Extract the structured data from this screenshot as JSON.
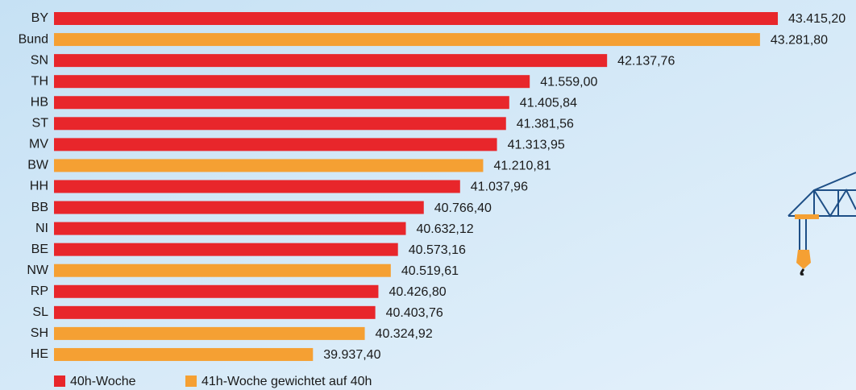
{
  "chart_data": {
    "type": "bar",
    "orientation": "horizontal",
    "categories": [
      "BY",
      "Bund",
      "SN",
      "TH",
      "HB",
      "ST",
      "MV",
      "BW",
      "HH",
      "BB",
      "NI",
      "BE",
      "NW",
      "RP",
      "SL",
      "SH",
      "HE"
    ],
    "series": [
      {
        "name": "40h-Woche",
        "color": "#e8262b",
        "values": [
          43415.2,
          null,
          42137.76,
          41559.0,
          41405.84,
          41381.56,
          41313.95,
          null,
          41037.96,
          40766.4,
          40632.12,
          40573.16,
          null,
          40426.8,
          40403.76,
          null,
          null
        ],
        "value_labels": [
          "43.415,20",
          null,
          "42.137,76",
          "41.559,00",
          "41.405,84",
          "41.381,56",
          "41.313,95",
          null,
          "41.037,96",
          "40.766,40",
          "40.632,12",
          "40.573,16",
          null,
          "40.426,80",
          "40.403,76",
          null,
          null
        ]
      },
      {
        "name": "41h-Woche gewichtet auf 40h",
        "color": "#f5a033",
        "values": [
          null,
          43281.8,
          null,
          null,
          null,
          null,
          null,
          41210.81,
          null,
          null,
          null,
          null,
          40519.61,
          null,
          null,
          40324.92,
          39937.4
        ],
        "value_labels": [
          null,
          "43.281,80",
          null,
          null,
          null,
          null,
          null,
          "41.210,81",
          null,
          null,
          null,
          null,
          "40.519,61",
          null,
          null,
          "40.324,92",
          "39.937,40"
        ]
      }
    ],
    "xlim": [
      38000,
      44000
    ]
  }
}
